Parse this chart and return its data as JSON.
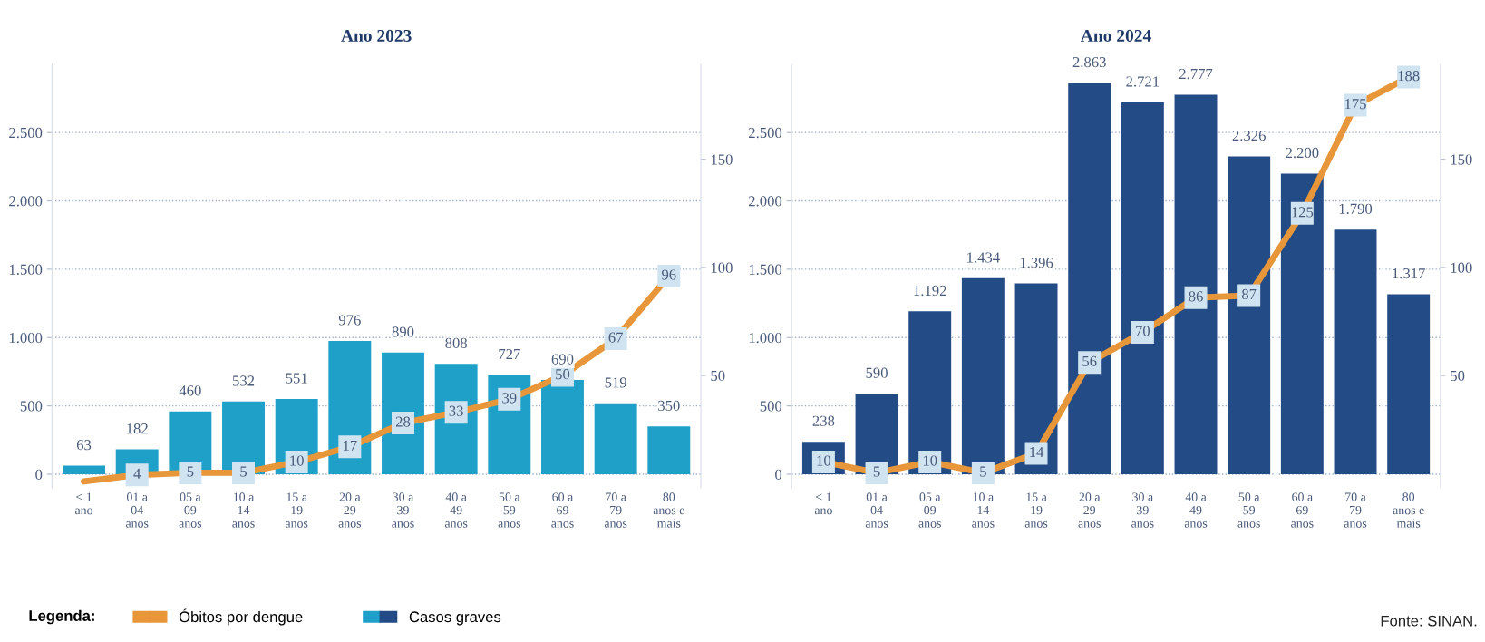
{
  "chart_data": [
    {
      "type": "bar",
      "title": "Ano 2023",
      "categories": [
        "< 1\nano",
        "01 a\n04\nanos",
        "05 a\n09\nanos",
        "10 a\n14\nanos",
        "15 a\n19\nanos",
        "20 a\n29\nanos",
        "30 a\n39\nanos",
        "40 a\n49\nanos",
        "50 a\n59\nanos",
        "60 a\n69\nanos",
        "70 a\n79\nanos",
        "80\nanos e\nmais"
      ],
      "series": [
        {
          "name": "Casos graves",
          "color": "#1fa0c8",
          "values": [
            63,
            182,
            460,
            532,
            551,
            976,
            890,
            808,
            727,
            690,
            519,
            350
          ],
          "value_labels": [
            "63",
            "182",
            "460",
            "532",
            "551",
            "976",
            "890",
            "808",
            "727",
            "690",
            "519",
            "350"
          ]
        },
        {
          "name": "Óbitos por dengue",
          "type": "line",
          "axis": "y2",
          "color": "#e8963a",
          "values": [
            1,
            4,
            5,
            5,
            10,
            17,
            28,
            33,
            39,
            50,
            67,
            96
          ],
          "value_labels": [
            null,
            "4",
            "5",
            "5",
            "10",
            "17",
            "28",
            "33",
            "39",
            "50",
            "67",
            "96"
          ]
        }
      ],
      "ylim": [
        -100,
        3000
      ],
      "yticks": [
        0,
        500,
        {
          "value": 1000,
          "label": "1.000"
        },
        {
          "value": 1500,
          "label": "1.500"
        },
        {
          "value": 2000,
          "label": "2.000"
        },
        {
          "value": 2500,
          "label": "2.500"
        }
      ],
      "y2lim": [
        -2,
        194
      ],
      "y2ticks": [
        50,
        100,
        150
      ],
      "grid": "y",
      "legend": "bottom",
      "legend_title": "Legenda:",
      "marker": "square",
      "line_style": "solid"
    },
    {
      "type": "bar",
      "title": "Ano 2024",
      "categories": [
        "< 1\nano",
        "01 a\n04\nanos",
        "05 a\n09\nanos",
        "10 a\n14\nanos",
        "15 a\n19\nanos",
        "20 a\n29\nanos",
        "30 a\n39\nanos",
        "40 a\n49\nanos",
        "50 a\n59\nanos",
        "60 a\n69\nanos",
        "70 a\n79\nanos",
        "80\nanos e\nmais"
      ],
      "series": [
        {
          "color": "#234b85",
          "values": [
            238,
            590,
            1192,
            1434,
            1396,
            2863,
            2721,
            2777,
            2326,
            2200,
            1790,
            1317
          ],
          "value_labels": [
            "238",
            "590",
            "1.192",
            "1.434",
            "1.396",
            "2.863",
            "2.721",
            "2.777",
            "2.326",
            "2.200",
            "1.790",
            "1.317"
          ]
        },
        {
          "type": "line",
          "axis": "y2",
          "color": "#e8963a",
          "values": [
            10,
            5,
            10,
            5,
            14,
            56,
            70,
            86,
            87,
            125,
            175,
            188
          ],
          "value_labels": [
            "10",
            "5",
            "10",
            "5",
            "14",
            "56",
            "70",
            "86",
            "87",
            "125",
            "175",
            "188"
          ]
        }
      ],
      "ylim": [
        -100,
        3000
      ],
      "yticks": [
        0,
        500,
        {
          "value": 1000,
          "label": "1.000"
        },
        {
          "value": 1500,
          "label": "1.500"
        },
        {
          "value": 2000,
          "label": "2.000"
        },
        {
          "value": 2500,
          "label": "2.500"
        }
      ],
      "y2lim": [
        -2,
        194
      ],
      "y2ticks": [
        50,
        100,
        150
      ],
      "grid": "y",
      "marker": "square",
      "line_style": "solid",
      "annotations": [
        "Fonte: SINAN."
      ]
    }
  ]
}
